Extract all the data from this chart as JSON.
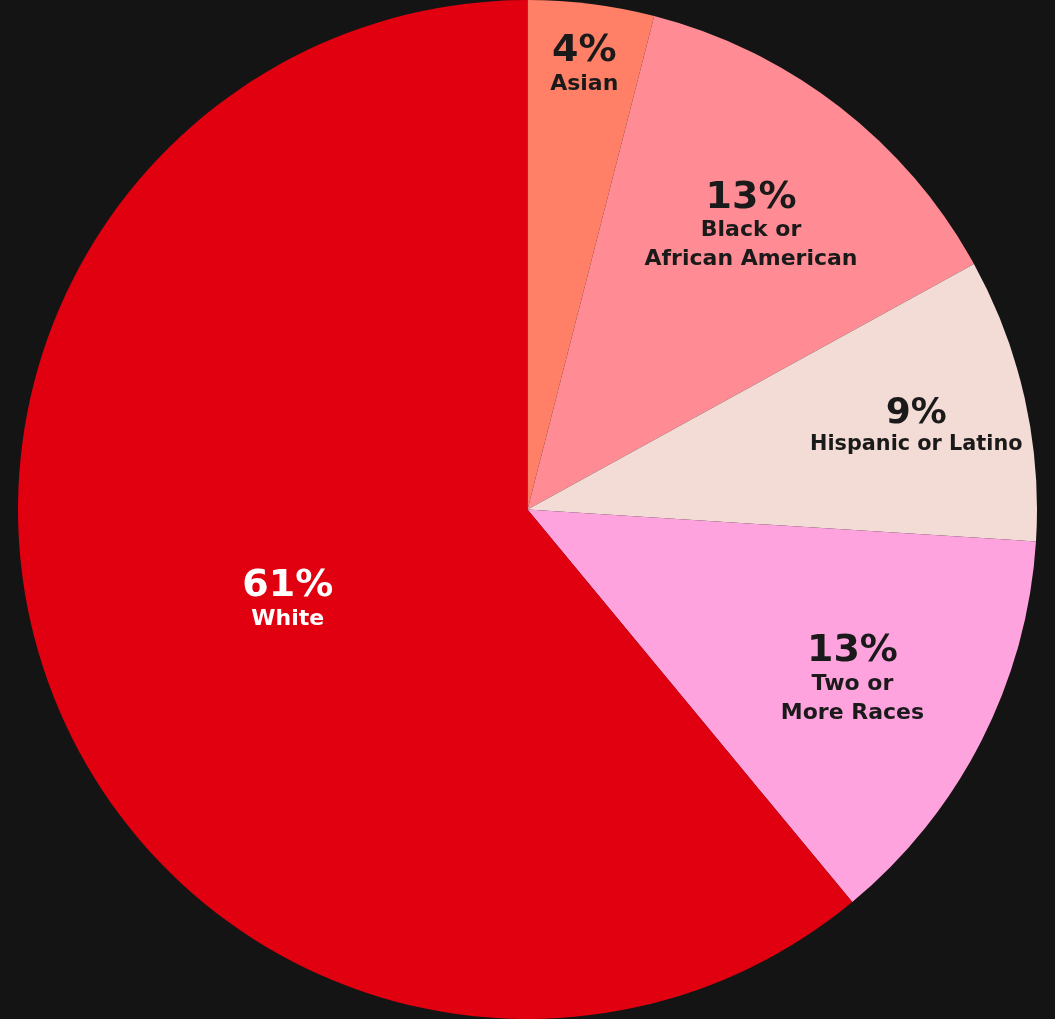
{
  "chart_data": {
    "type": "pie",
    "categories": [
      "Asian",
      "Black or\nAfrican American",
      "Hispanic or Latino",
      "Two or\nMore Races",
      "White"
    ],
    "values": [
      4,
      13,
      9,
      13,
      61
    ],
    "value_labels": [
      "4%",
      "13%",
      "9%",
      "13%",
      "61%"
    ],
    "colors": [
      "#ff8066",
      "#ff8c94",
      "#f2dcd5",
      "#ffa3df",
      "#e00010"
    ],
    "legend": false
  }
}
